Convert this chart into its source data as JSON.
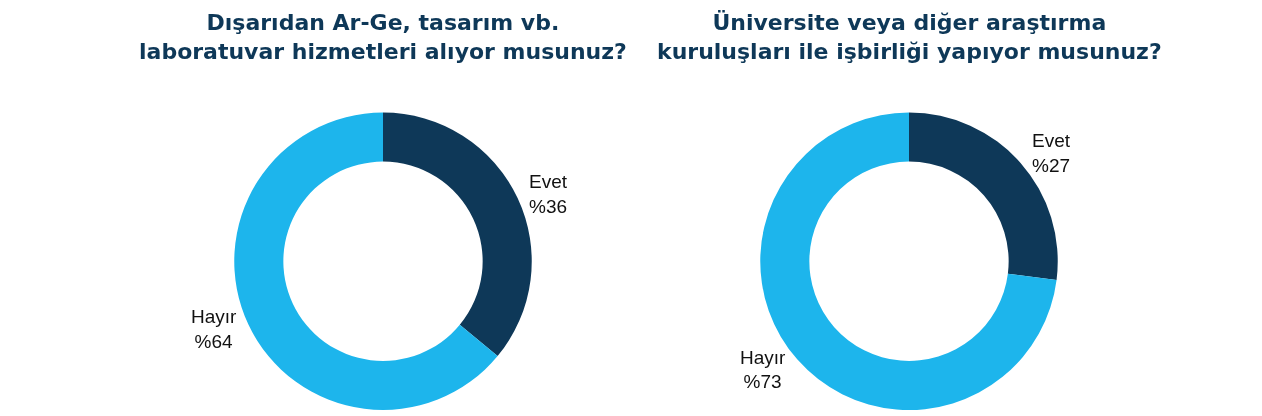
{
  "chart_data": [
    {
      "type": "donut",
      "title": "Dışarıdan Ar-Ge, tasarım vb.\nlaboratuvar hizmetleri alıyor musunuz?",
      "categories": [
        "Evet",
        "Hayır"
      ],
      "values": [
        36,
        64
      ],
      "colors": [
        "#0e3858",
        "#1db5ec"
      ],
      "value_labels": [
        "%36",
        "%64"
      ]
    },
    {
      "type": "donut",
      "title": "Üniversite veya diğer araştırma\nkuruluşları ile işbirliği yapıyor musunuz?",
      "categories": [
        "Evet",
        "Hayır"
      ],
      "values": [
        27,
        73
      ],
      "colors": [
        "#0e3858",
        "#1db5ec"
      ],
      "value_labels": [
        "%27",
        "%73"
      ]
    }
  ]
}
